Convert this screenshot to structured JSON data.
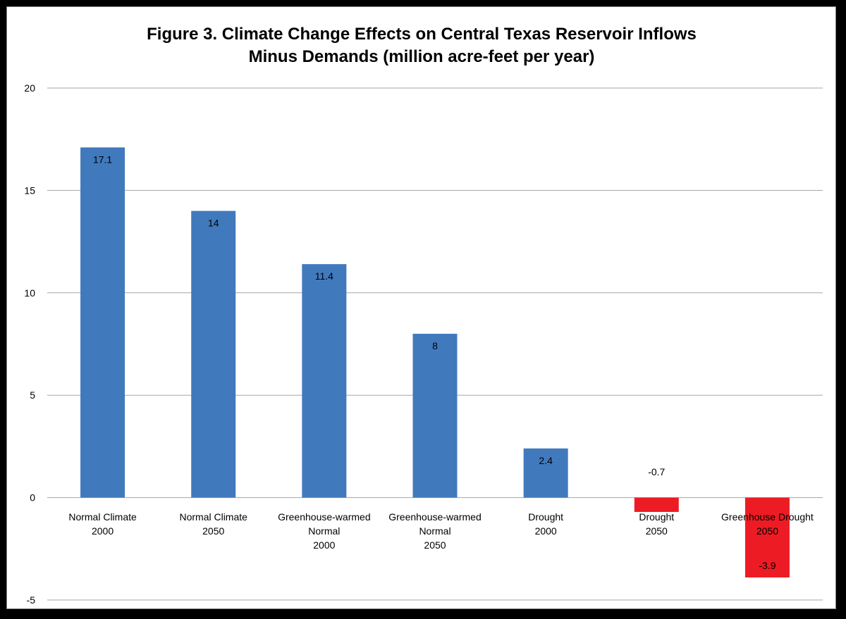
{
  "chart_data": {
    "type": "bar",
    "title_lines": [
      "Figure 3. Climate Change Effects on Central Texas Reservoir Inflows",
      "Minus Demands  (million acre-feet per year)"
    ],
    "categories": [
      [
        "Normal Climate",
        "2000"
      ],
      [
        "Normal Climate",
        "2050"
      ],
      [
        "Greenhouse-warmed",
        "Normal",
        "2000"
      ],
      [
        "Greenhouse-warmed",
        "Normal",
        "2050"
      ],
      [
        "Drought",
        "2000"
      ],
      [
        "Drought",
        "2050"
      ],
      [
        "Greenhouse Drought",
        "2050"
      ]
    ],
    "values": [
      17.1,
      14,
      11.4,
      8,
      2.4,
      -0.7,
      -3.9
    ],
    "data_labels": [
      "17.1",
      "14",
      "11.4",
      "8",
      "2.4",
      "-0.7",
      "-3.9"
    ],
    "bar_colors": [
      "#4179bd",
      "#4179bd",
      "#4179bd",
      "#4179bd",
      "#4179bd",
      "#ed1c24",
      "#ed1c24"
    ],
    "ylim": [
      -5,
      20
    ],
    "yticks": [
      -5,
      0,
      5,
      10,
      15,
      20
    ],
    "ytick_labels": [
      "-5",
      "0",
      "5",
      "10",
      "15",
      "20"
    ],
    "grid": true,
    "xlabel": "",
    "ylabel": ""
  }
}
